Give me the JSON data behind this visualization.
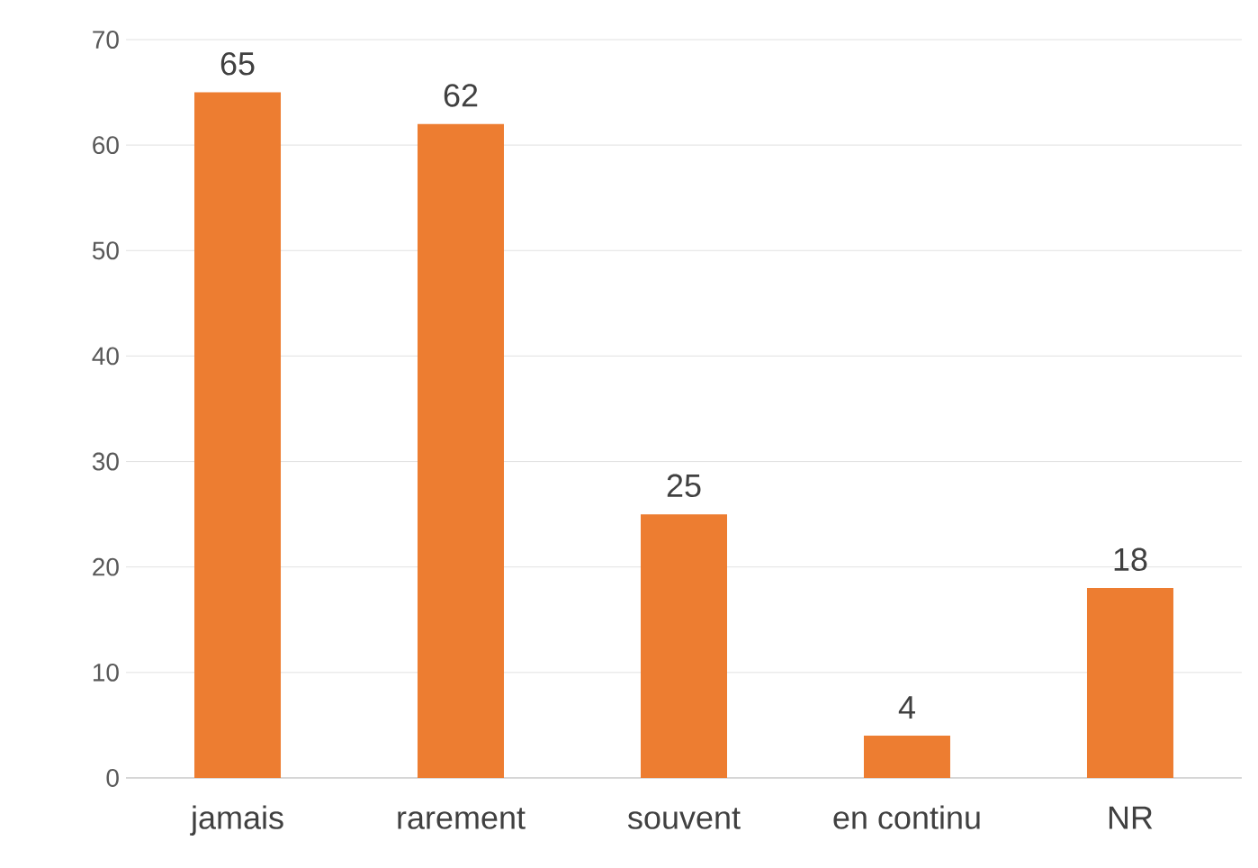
{
  "chart_data": {
    "type": "bar",
    "categories": [
      "jamais",
      "rarement",
      "souvent",
      "en continu",
      "NR"
    ],
    "values": [
      65,
      62,
      25,
      4,
      18
    ],
    "color": "#ed7d31",
    "ylim": [
      0,
      70
    ],
    "yticks": [
      0,
      10,
      20,
      30,
      40,
      50,
      60,
      70
    ],
    "grid": "y",
    "data_labels": true
  }
}
